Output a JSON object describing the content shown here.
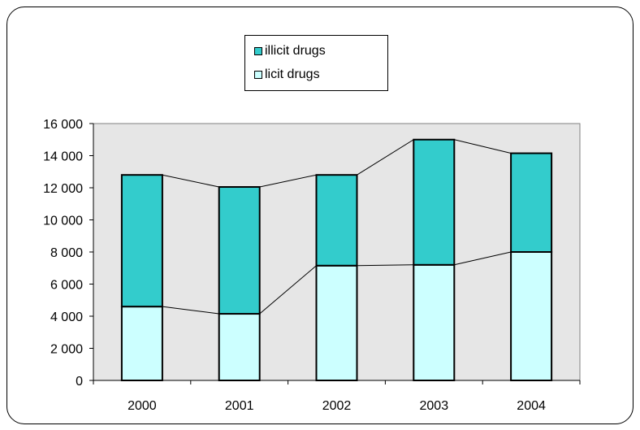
{
  "chart_data": {
    "type": "bar",
    "stacked": true,
    "categories": [
      "2000",
      "2001",
      "2002",
      "2003",
      "2004"
    ],
    "series": [
      {
        "name": "licit drugs",
        "color": "#ccffff",
        "values": [
          4600,
          4150,
          7150,
          7200,
          8000
        ]
      },
      {
        "name": "illicit drugs",
        "color": "#33cccc",
        "values": [
          8200,
          7900,
          5650,
          7800,
          6150
        ]
      }
    ],
    "totals": [
      12800,
      12050,
      12800,
      15000,
      14150
    ],
    "ylim": [
      0,
      16000
    ],
    "yticks": [
      0,
      2000,
      4000,
      6000,
      8000,
      10000,
      12000,
      14000,
      16000
    ],
    "ytick_labels": [
      "0",
      "2 000",
      "4 000",
      "6 000",
      "8 000",
      "10 000",
      "12 000",
      "14 000",
      "16 000"
    ],
    "series_lines": true,
    "plot_background": "#e6e6e6",
    "grid": false,
    "legend_position": "top-center"
  }
}
